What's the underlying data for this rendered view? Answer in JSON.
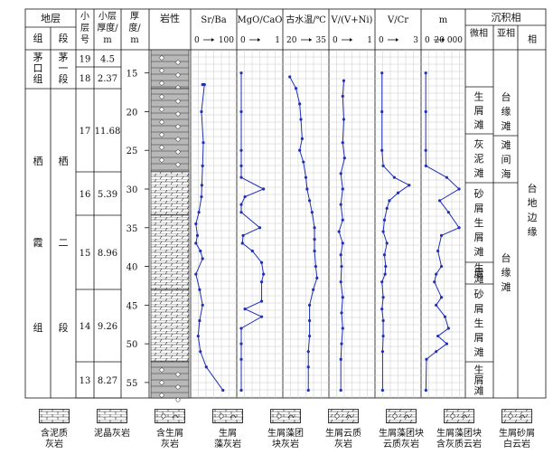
{
  "headers": {
    "stratum": "地层",
    "formation": "组",
    "member": "段",
    "sublayer_no": "小层号",
    "sublayer_thickness": "小层厚度/m",
    "depth": "厚度/m",
    "lithology": "岩性",
    "facies": "沉积相",
    "microfacies": "微相",
    "subfacies": "亚相",
    "facies_col": "相"
  },
  "formations": [
    {
      "formation": "茅口组",
      "member": "茅一段"
    },
    {
      "formation": "栖霞组",
      "member": "栖二段"
    }
  ],
  "layers": [
    {
      "no": "19",
      "thickness": "4.5"
    },
    {
      "no": "18",
      "thickness": "2.37"
    },
    {
      "no": "17",
      "thickness": "11.68"
    },
    {
      "no": "16",
      "thickness": "5.39"
    },
    {
      "no": "15",
      "thickness": "8.96"
    },
    {
      "no": "14",
      "thickness": "9.26"
    },
    {
      "no": "13",
      "thickness": "8.27"
    }
  ],
  "depth_ticks": [
    "15",
    "20",
    "25",
    "30",
    "35",
    "40",
    "45",
    "50",
    "55"
  ],
  "microfacies": [
    "生屑滩",
    "灰泥滩",
    "砂屑、生屑滩",
    "生屑滩",
    "砂屑、生屑滩",
    "生屑滩"
  ],
  "subfacies": [
    "台缘滩",
    "滩间海",
    "台缘滩"
  ],
  "facies": [
    "台地边缘"
  ],
  "chart_data": {
    "type": "line",
    "x_label": "厚度/m",
    "depth_range": [
      12,
      57
    ],
    "panels": [
      {
        "title": "Sr/Ba",
        "scale": [
          "0",
          "100"
        ],
        "xlim": [
          0,
          100
        ],
        "points": [
          [
            20,
            16.5
          ],
          [
            25,
            16.5
          ],
          [
            17,
            20
          ],
          [
            22,
            24
          ],
          [
            20,
            27
          ],
          [
            18,
            29.5
          ],
          [
            17,
            31
          ],
          [
            10,
            33
          ],
          [
            2,
            34.5
          ],
          [
            6,
            36
          ],
          [
            2,
            37
          ],
          [
            14,
            38
          ],
          [
            20,
            39
          ],
          [
            2,
            41
          ],
          [
            12,
            43
          ],
          [
            20,
            45
          ],
          [
            12,
            47
          ],
          [
            8,
            49
          ],
          [
            14,
            51
          ],
          [
            30,
            53
          ],
          [
            75,
            56
          ]
        ]
      },
      {
        "title": "MgO/CaO",
        "scale": [
          "0",
          "1"
        ],
        "xlim": [
          0,
          1
        ],
        "points": [
          [
            0,
            15
          ],
          [
            0,
            20
          ],
          [
            0,
            25
          ],
          [
            0,
            27
          ],
          [
            0,
            28.5
          ],
          [
            0.6,
            30
          ],
          [
            0.1,
            31
          ],
          [
            0,
            32
          ],
          [
            0,
            33
          ],
          [
            0.5,
            35
          ],
          [
            0.05,
            36
          ],
          [
            0.03,
            37
          ],
          [
            0.3,
            38
          ],
          [
            0.55,
            39.5
          ],
          [
            0.6,
            41
          ],
          [
            0.55,
            42
          ],
          [
            0.55,
            44.5
          ],
          [
            0.1,
            45.5
          ],
          [
            0.55,
            46.5
          ],
          [
            0,
            48
          ],
          [
            0,
            50
          ],
          [
            0,
            52
          ],
          [
            0,
            56
          ]
        ]
      },
      {
        "title": "古水温/℃",
        "scale": [
          "20",
          "35"
        ],
        "xlim": [
          20,
          35
        ],
        "points": [
          [
            21,
            15.5
          ],
          [
            23.5,
            17
          ],
          [
            25,
            19
          ],
          [
            25.5,
            21
          ],
          [
            26,
            23.5
          ],
          [
            25,
            25
          ],
          [
            26.5,
            26.5
          ],
          [
            27.5,
            28.5
          ],
          [
            28,
            30
          ],
          [
            29,
            31.5
          ],
          [
            30,
            33
          ],
          [
            31,
            35
          ],
          [
            31,
            36.5
          ],
          [
            31,
            38
          ],
          [
            31.5,
            40
          ],
          [
            32,
            41.5
          ],
          [
            30.5,
            43
          ],
          [
            29,
            45
          ],
          [
            29,
            47
          ],
          [
            29,
            49
          ],
          [
            28.5,
            51
          ],
          [
            28.5,
            53
          ],
          [
            28.5,
            56
          ]
        ]
      },
      {
        "title": "V/(V+Ni)",
        "scale": [
          "0",
          "1"
        ],
        "xlim": [
          0,
          1
        ],
        "points": [
          [
            0.28,
            16
          ],
          [
            0.25,
            18
          ],
          [
            0.28,
            21
          ],
          [
            0.25,
            24
          ],
          [
            0.3,
            26
          ],
          [
            0.2,
            28
          ],
          [
            0.25,
            30
          ],
          [
            0.2,
            32
          ],
          [
            0.25,
            34
          ],
          [
            0.15,
            35.5
          ],
          [
            0.25,
            37
          ],
          [
            0.2,
            38.5
          ],
          [
            0.22,
            40
          ],
          [
            0.2,
            42
          ],
          [
            0.25,
            44
          ],
          [
            0.22,
            46
          ],
          [
            0.25,
            48
          ],
          [
            0.22,
            50
          ],
          [
            0.2,
            52
          ],
          [
            0.2,
            56
          ]
        ]
      },
      {
        "title": "V/Cr",
        "scale": [
          "0",
          "3"
        ],
        "xlim": [
          0,
          3
        ],
        "points": [
          [
            0.2,
            15
          ],
          [
            0.2,
            20
          ],
          [
            0.2,
            25
          ],
          [
            0.3,
            27
          ],
          [
            1.2,
            28.5
          ],
          [
            2.4,
            29.5
          ],
          [
            1.5,
            30.5
          ],
          [
            0.8,
            31.5
          ],
          [
            0.6,
            32.5
          ],
          [
            0.4,
            34
          ],
          [
            0.3,
            35.5
          ],
          [
            0.6,
            37
          ],
          [
            0.4,
            38.5
          ],
          [
            0.5,
            40
          ],
          [
            0.45,
            41
          ],
          [
            0.2,
            42
          ],
          [
            0.3,
            44
          ],
          [
            0.2,
            45.5
          ],
          [
            0.3,
            47
          ],
          [
            0.3,
            49
          ],
          [
            0.25,
            51
          ],
          [
            0.25,
            56
          ]
        ]
      },
      {
        "title": "m",
        "scale": [
          "0",
          "20 000"
        ],
        "xlim": [
          0,
          20000
        ],
        "points": [
          [
            100,
            15
          ],
          [
            100,
            20
          ],
          [
            100,
            25
          ],
          [
            200,
            27
          ],
          [
            12000,
            28.5
          ],
          [
            19000,
            30
          ],
          [
            8000,
            31.5
          ],
          [
            13000,
            33
          ],
          [
            19000,
            35
          ],
          [
            9000,
            36
          ],
          [
            7000,
            38
          ],
          [
            9000,
            40
          ],
          [
            6000,
            41
          ],
          [
            5000,
            42
          ],
          [
            9000,
            44
          ],
          [
            6000,
            45
          ],
          [
            11000,
            46.5
          ],
          [
            13000,
            48
          ],
          [
            7000,
            49
          ],
          [
            12000,
            50
          ],
          [
            6000,
            51
          ],
          [
            500,
            52
          ],
          [
            200,
            56
          ]
        ]
      }
    ]
  },
  "legend": [
    {
      "label": "含泥质\n灰岩",
      "pattern": "limestone-mud"
    },
    {
      "label": "泥晶灰岩",
      "pattern": "micrite"
    },
    {
      "label": "含生屑\n灰岩",
      "pattern": "bioclast-limestone"
    },
    {
      "label": "生屑\n藻灰岩",
      "pattern": "bioclast-algal-limestone"
    },
    {
      "label": "生屑藻团\n块灰岩",
      "pattern": "bioclast-algal-lump-limestone"
    },
    {
      "label": "生屑云质\n灰岩",
      "pattern": "bioclast-dolomitic-limestone"
    },
    {
      "label": "生屑藻团块\n云质灰岩",
      "pattern": "bioclast-algal-lump-dolomitic"
    },
    {
      "label": "生屑藻团块\n含灰质云岩",
      "pattern": "bioclast-algal-lump-dolostone"
    },
    {
      "label": "生屑砂屑\n白云岩",
      "pattern": "bioclast-sand-dolostone"
    }
  ],
  "colors": {
    "line": "#1f2fb8",
    "grid": "#c8c8c8",
    "rock_gray": "#b8b8b8",
    "border": "#111111"
  }
}
